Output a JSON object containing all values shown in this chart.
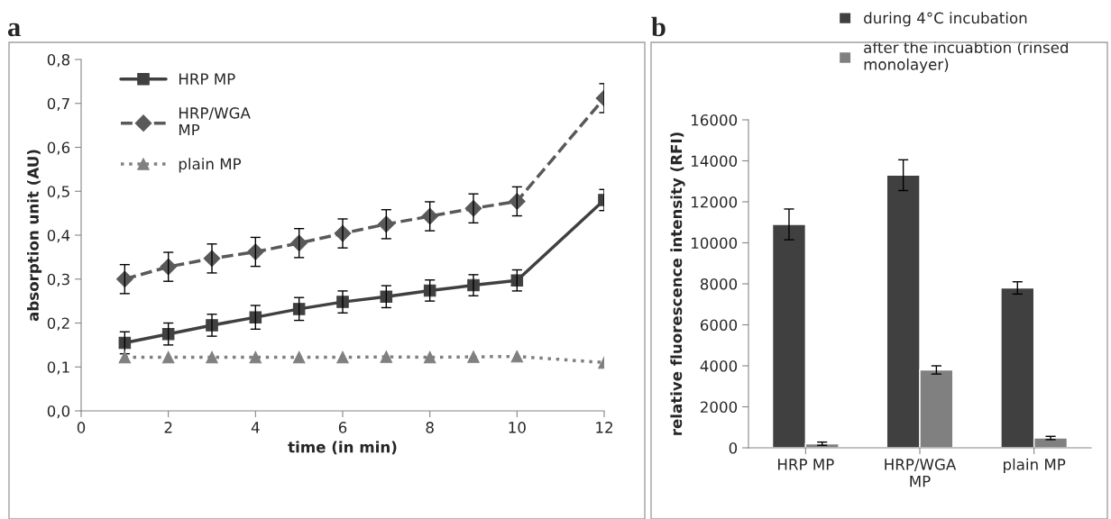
{
  "chart_data": [
    {
      "type": "line",
      "title": "a",
      "xlabel": "time (in min)",
      "ylabel": "absorption unit (AU)",
      "x": [
        1,
        2,
        3,
        4,
        5,
        6,
        7,
        8,
        9,
        10,
        12
      ],
      "series": [
        {
          "name": "HRP MP",
          "color": "#404040",
          "marker": "square",
          "line_style": "solid",
          "values": [
            0.155,
            0.175,
            0.195,
            0.213,
            0.232,
            0.248,
            0.26,
            0.274,
            0.286,
            0.297,
            0.48
          ],
          "errors": [
            0.025,
            0.025,
            0.025,
            0.027,
            0.026,
            0.025,
            0.025,
            0.024,
            0.024,
            0.024,
            0.024
          ]
        },
        {
          "name": "HRP/WGA\nMP",
          "color": "#595959",
          "marker": "diamond",
          "line_style": "dashed",
          "values": [
            0.3,
            0.328,
            0.347,
            0.362,
            0.382,
            0.404,
            0.425,
            0.443,
            0.461,
            0.477,
            0.712
          ],
          "errors": [
            0.033,
            0.033,
            0.033,
            0.033,
            0.033,
            0.033,
            0.033,
            0.033,
            0.033,
            0.033,
            0.033
          ]
        },
        {
          "name": "plain MP",
          "color": "#808080",
          "marker": "triangle",
          "line_style": "dotted",
          "values": [
            0.122,
            0.122,
            0.122,
            0.122,
            0.122,
            0.122,
            0.123,
            0.122,
            0.123,
            0.124,
            0.11
          ]
        }
      ],
      "xlim": [
        0,
        12
      ],
      "xticks": [
        0,
        2,
        4,
        6,
        8,
        10,
        12
      ],
      "ylim": [
        0,
        0.8
      ],
      "yticks": [
        {
          "value": 0,
          "label": "0,0"
        },
        {
          "value": 0.1,
          "label": "0,1"
        },
        {
          "value": 0.2,
          "label": "0,2"
        },
        {
          "value": 0.3,
          "label": "0,3"
        },
        {
          "value": 0.4,
          "label": "0,4"
        },
        {
          "value": 0.5,
          "label": "0,5"
        },
        {
          "value": 0.6,
          "label": "0,6"
        },
        {
          "value": 0.7,
          "label": "0,7"
        },
        {
          "value": 0.8,
          "label": "0,8"
        }
      ],
      "grid": false,
      "legend": "top left"
    },
    {
      "type": "bar",
      "title": "b",
      "ylabel": "relative fluorescence intensity (RFI)",
      "categories": [
        "HRP MP",
        "HRP/WGA\nMP",
        "plain MP"
      ],
      "series": [
        {
          "name": "during 4°C incubation",
          "color": "#404040",
          "values": [
            10900,
            13300,
            7800
          ],
          "errors": [
            750,
            750,
            300
          ]
        },
        {
          "name": "after the incuabtion (rinsed\nmonolayer)",
          "color": "#808080",
          "values": [
            200,
            3800,
            480
          ],
          "errors": [
            80,
            200,
            80
          ]
        }
      ],
      "ylim": [
        0,
        16000
      ],
      "yticks": [
        0,
        2000,
        4000,
        6000,
        8000,
        10000,
        12000,
        14000,
        16000
      ],
      "grid": false,
      "legend": "top"
    }
  ]
}
